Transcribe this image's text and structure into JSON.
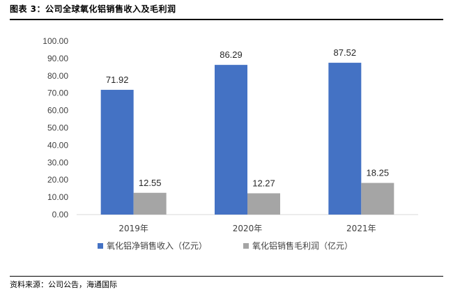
{
  "figure": {
    "title": "图表 3：公司全球氧化铝销售收入及毛利润",
    "source": "资料来源：公司公告，海通国际"
  },
  "chart_data": {
    "type": "bar",
    "categories": [
      "2019年",
      "2020年",
      "2021年"
    ],
    "series": [
      {
        "name": "氧化铝净销售收入（亿元）",
        "values": [
          71.92,
          86.29,
          87.52
        ],
        "color": "#4472C4"
      },
      {
        "name": "氧化铝销售毛利润（亿元）",
        "values": [
          12.55,
          12.27,
          18.25
        ],
        "color": "#A5A5A5"
      }
    ],
    "data_labels": [
      [
        "71.92",
        "86.29",
        "87.52"
      ],
      [
        "12.55",
        "12.27",
        "18.25"
      ]
    ],
    "yticks": [
      "0.00",
      "10.00",
      "20.00",
      "30.00",
      "40.00",
      "50.00",
      "60.00",
      "70.00",
      "80.00",
      "90.00",
      "100.00"
    ],
    "ylim": [
      0,
      100
    ],
    "grid": false,
    "legend_position": "bottom"
  }
}
